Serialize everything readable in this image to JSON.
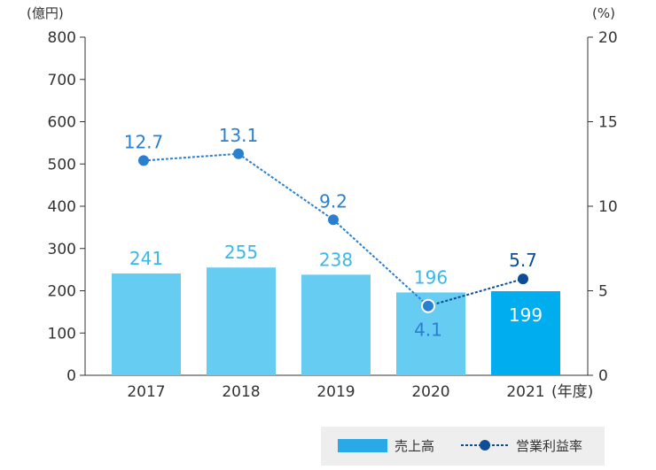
{
  "chart_data": {
    "type": "bar",
    "categories": [
      "2017",
      "2018",
      "2019",
      "2020",
      "2021"
    ],
    "x_unit": "(年度)",
    "left_axis": {
      "unit": "(億円)",
      "ylim": [
        0,
        800
      ],
      "ticks": [
        0,
        100,
        200,
        300,
        400,
        500,
        600,
        700,
        800
      ]
    },
    "right_axis": {
      "unit": "(%)",
      "ylim": [
        0,
        20
      ],
      "ticks": [
        0,
        5,
        10,
        15,
        20
      ]
    },
    "series": [
      {
        "name": "売上高",
        "type": "bar",
        "axis": "left",
        "values": [
          241,
          255,
          238,
          196,
          199
        ],
        "labels": [
          "241",
          "255",
          "238",
          "196",
          "199"
        ]
      },
      {
        "name": "営業利益率",
        "type": "line",
        "axis": "right",
        "values": [
          12.7,
          13.1,
          9.2,
          4.1,
          5.7
        ],
        "labels": [
          "12.7",
          "13.1",
          "9.2",
          "4.1",
          "5.7"
        ]
      }
    ],
    "legend_placement": "bottom-right",
    "grid": false,
    "colors": {
      "bar": "#66ccf2",
      "bar_highlight": "#00aeef",
      "bar_label": "#3ab8e8",
      "line": "#2a7fd0",
      "line_highlight": "#0e4c96",
      "legend_bar": "#29a9e8",
      "legend_line": "#0e4c96",
      "axis": "#333333",
      "legend_bg": "#eeeeee"
    }
  }
}
